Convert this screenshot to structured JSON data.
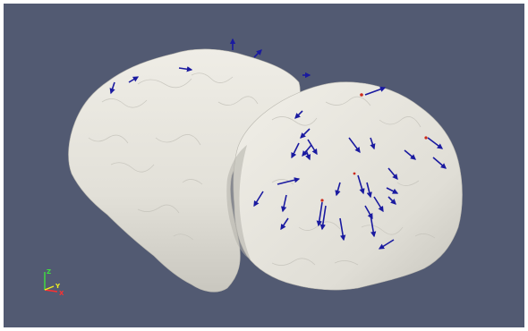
{
  "viewer": {
    "background_color": "#525a72",
    "border_color": "#ffffff",
    "surface_color": "#e9e7e0",
    "surface_shadow_color": "#b8b6ae",
    "vector_color": "#1a1aa0",
    "marker_color": "#cc2a1a"
  },
  "orientation_axes": {
    "x_label": "X",
    "y_label": "Y",
    "z_label": "Z",
    "x_color": "#ff3030",
    "y_color": "#f0f020",
    "z_color": "#40e040"
  }
}
